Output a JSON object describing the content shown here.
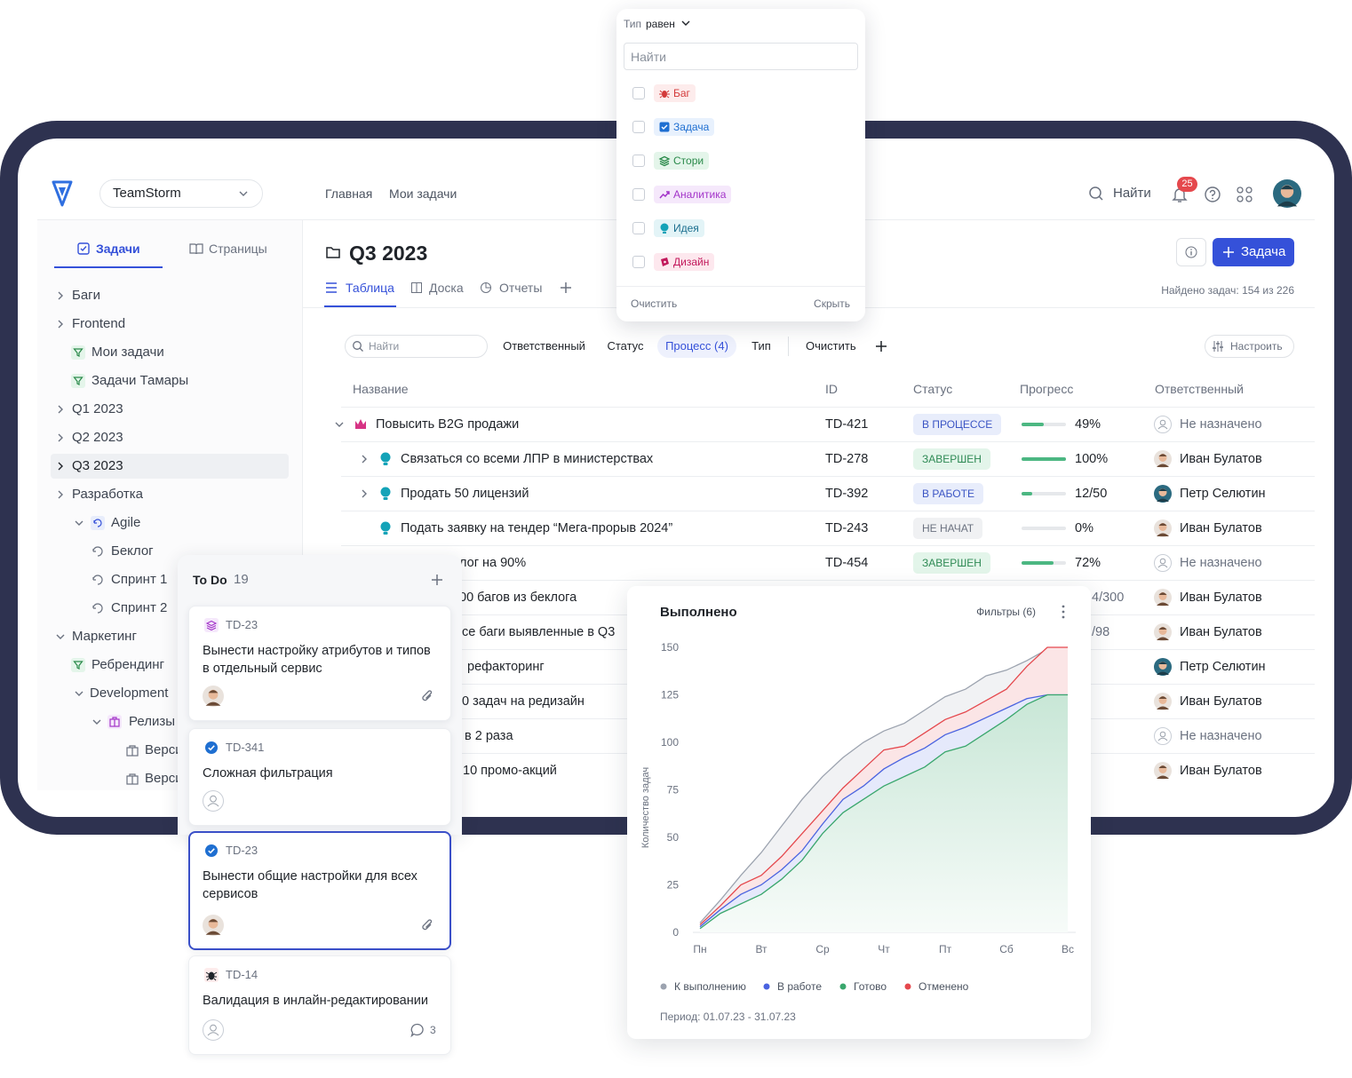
{
  "header": {
    "workspace": "TeamStorm",
    "nav": [
      "Главная",
      "Мои задачи"
    ],
    "search": "Найти",
    "notifications": 25
  },
  "sidebar": {
    "tabs": [
      "Задачи",
      "Страницы"
    ],
    "tree": [
      "Баги",
      "Frontend",
      "Мои задачи",
      "Задачи Тамары",
      "Q1 2023",
      "Q2 2023",
      "Q3 2023",
      "Разработка",
      "Agile",
      "Беклог",
      "Спринт 1",
      "Спринт 2",
      "Маркетинг",
      "Ребрендинг",
      "Development",
      "Релизы",
      "Верси",
      "Верси"
    ]
  },
  "page": {
    "title": "Q3 2023",
    "views": [
      "Таблица",
      "Доска",
      "Отчеты"
    ],
    "new_task": "Задача",
    "found": "Найдено задач: 154 из 226"
  },
  "filters": {
    "search": "Найти",
    "chips": [
      "Ответственный",
      "Статус",
      "Процесс (4)",
      "Тип"
    ],
    "clear": "Очистить",
    "configure": "Настроить"
  },
  "table": {
    "columns": [
      "Название",
      "ID",
      "Статус",
      "Прогресс",
      "Ответственный"
    ],
    "rows": [
      {
        "name": "Повысить B2G продажи",
        "id": "TD-421",
        "status": "В ПРОЦЕССЕ",
        "progress": 49,
        "progress_label": "49%",
        "assignee": "Не назначено"
      },
      {
        "name": "Связаться со всеми ЛПР в министерствах",
        "id": "TD-278",
        "status": "ЗАВЕРШЕН",
        "progress": 100,
        "progress_label": "100%",
        "assignee": "Иван Булатов"
      },
      {
        "name": "Продать 50 лицензий",
        "id": "TD-392",
        "status": "В РАБОТЕ",
        "progress": 24,
        "progress_label": "12/50",
        "assignee": "Петр Селютин"
      },
      {
        "name": "Подать заявку на тендер “Мега-прорыв 2024”",
        "id": "TD-243",
        "status": "НЕ НАЧАТ",
        "progress": 0,
        "progress_label": "0%",
        "assignee": "Иван Булатов"
      },
      {
        "name": "лог на 90%",
        "id": "TD-454",
        "status": "ЗАВЕРШЕН",
        "progress": 72,
        "progress_label": "72%",
        "assignee": "Не назначено"
      },
      {
        "name": "00 багов из беклога",
        "progress_label": "4/300",
        "assignee": "Иван Булатов"
      },
      {
        "name": "се баги выявленные в Q3",
        "progress_label": "/98",
        "assignee": "Иван Булатов"
      },
      {
        "name": "рефакторинг",
        "assignee": "Петр Селютин"
      },
      {
        "name": "0 задач на редизайн",
        "assignee": "Иван Булатов"
      },
      {
        "name": "в 2 раза",
        "assignee": "Не назначено"
      },
      {
        "name": "10 промо-акций",
        "assignee": "Иван Булатов"
      }
    ]
  },
  "type_filter": {
    "field": "Тип",
    "operator": "равен",
    "search": "Найти",
    "options": [
      "Баг",
      "Задача",
      "Стори",
      "Аналитика",
      "Идея",
      "Дизайн"
    ],
    "clear": "Очистить",
    "hide": "Скрыть"
  },
  "board": {
    "column": "To Do",
    "count": 19,
    "cards": [
      {
        "key": "TD-23",
        "title": "Вынести настройку атрибутов и типов в отдельный сервис"
      },
      {
        "key": "TD-341",
        "title": "Сложная фильтрация"
      },
      {
        "key": "TD-23",
        "title": "Вынести общие настройки для всех сервисов"
      },
      {
        "key": "TD-14",
        "title": "Валидация в инлайн-редактировании",
        "comments": 3
      }
    ]
  },
  "chart_data": {
    "type": "line",
    "title": "Выполнено",
    "filters": "Фильтры (6)",
    "y_label": "Количество задач",
    "footer": "Период: 01.07.23 - 31.07.23",
    "categories": [
      "Пн",
      null,
      null,
      "Вт",
      null,
      null,
      "Ср",
      null,
      null,
      "Чт",
      null,
      null,
      "Пт",
      null,
      null,
      "Сб",
      null,
      null,
      "Вс"
    ],
    "ylim": [
      0,
      150
    ],
    "yticks": [
      0,
      25,
      50,
      75,
      100,
      125,
      150
    ],
    "grid": false,
    "series": [
      {
        "name": "К выполнению",
        "color": "#9ca3af",
        "values": [
          5,
          17,
          30,
          42,
          56,
          70,
          82,
          92,
          100,
          106,
          110,
          117,
          124,
          128,
          135,
          138,
          143,
          149,
          150
        ]
      },
      {
        "name": "В работе",
        "color": "#4a63e0",
        "values": [
          3,
          12,
          20,
          25,
          33,
          43,
          57,
          70,
          77,
          86,
          92,
          97,
          104,
          108,
          113,
          118,
          123,
          125,
          125
        ]
      },
      {
        "name": "Готово",
        "color": "#3aa76d",
        "values": [
          2,
          10,
          15,
          20,
          28,
          38,
          52,
          63,
          70,
          77,
          82,
          87,
          95,
          98,
          105,
          112,
          120,
          125,
          125
        ]
      },
      {
        "name": "Отменено",
        "color": "#e5484d",
        "values": [
          4,
          14,
          25,
          30,
          40,
          52,
          64,
          76,
          86,
          96,
          98,
          105,
          112,
          116,
          122,
          128,
          140,
          150,
          150
        ]
      }
    ]
  }
}
